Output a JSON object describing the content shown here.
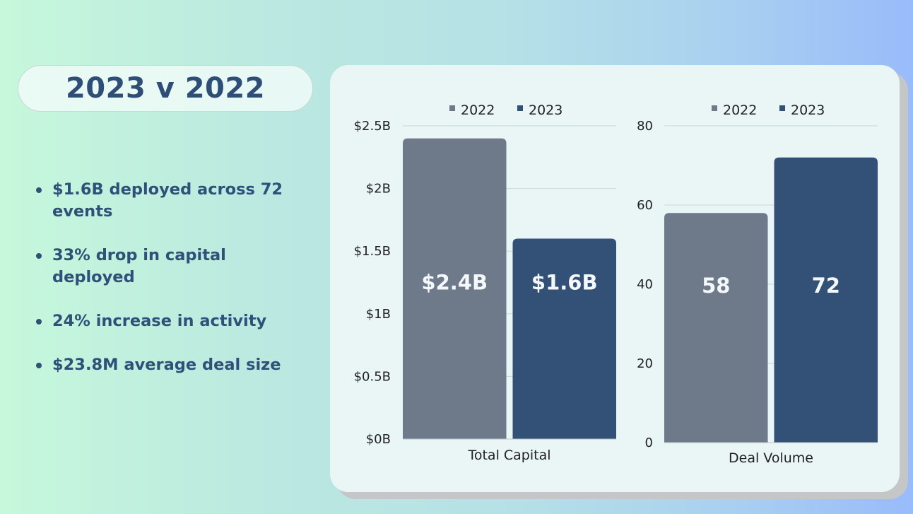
{
  "title": "2023 v 2022",
  "bullets": [
    {
      "line1": "$1.6B deployed across 72",
      "line2": "events"
    },
    {
      "line1": "33% drop in capital",
      "line2": "deployed"
    },
    {
      "line1": "24% increase in activity",
      "line2": ""
    },
    {
      "line1": "$23.8M average deal size",
      "line2": ""
    }
  ],
  "colors": {
    "2022": "#6e7a8a",
    "2023": "#335177",
    "text": "#2f5079",
    "gridline": "#cfdcdc"
  },
  "chart_data": [
    {
      "type": "bar",
      "legend": [
        "2022",
        "2023"
      ],
      "legend_position": "top",
      "categories": [
        "Total Capital"
      ],
      "series": [
        {
          "name": "2022",
          "values": [
            2.4
          ],
          "label": "$2.4B"
        },
        {
          "name": "2023",
          "values": [
            1.6
          ],
          "label": "$1.6B"
        }
      ],
      "ylim": [
        0,
        2.5
      ],
      "yticks": [
        "$0B",
        "$0.5B",
        "$1B",
        "$1.5B",
        "$2B",
        "$2.5B"
      ],
      "grid": true
    },
    {
      "type": "bar",
      "legend": [
        "2022",
        "2023"
      ],
      "legend_position": "top",
      "categories": [
        "Deal Volume"
      ],
      "series": [
        {
          "name": "2022",
          "values": [
            58
          ],
          "label": "58"
        },
        {
          "name": "2023",
          "values": [
            72
          ],
          "label": "72"
        }
      ],
      "ylim": [
        0,
        80
      ],
      "yticks": [
        "0",
        "20",
        "40",
        "60",
        "80"
      ],
      "grid": true
    }
  ]
}
